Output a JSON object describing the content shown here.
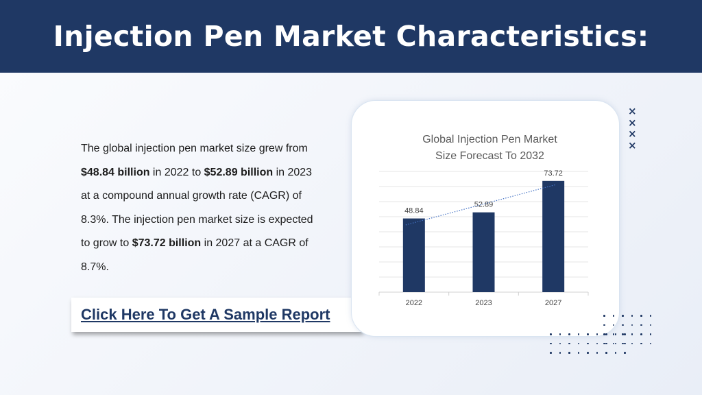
{
  "header": {
    "title": "Injection Pen Market Characteristics:"
  },
  "colors": {
    "header_bg": "#1f3864",
    "bar": "#1f3864",
    "trendline": "#4472c4",
    "decoration": "#1f3864"
  },
  "body": {
    "p1": "The global injection pen market size grew from ",
    "v2022": "$48.84 billion",
    "p2": " in 2022 to ",
    "v2023": "$52.89 billion",
    "p3": " in 2023 at a compound annual growth rate (CAGR) of 8.3%. The injection pen market size is expected to grow to ",
    "v2027": "$73.72 billion",
    "p4": " in 2027 at a CAGR of 8.7%."
  },
  "cta": {
    "label": "Click Here To Get A Sample Report"
  },
  "decorations": {
    "x_icon": "x-mark-icon",
    "dot_pattern": "dot-grid"
  },
  "chart_data": {
    "type": "bar",
    "title": "Global Injection Pen Market Size Forecast To 2032",
    "categories": [
      "2022",
      "2023",
      "2027"
    ],
    "values": [
      48.84,
      52.89,
      73.72
    ],
    "data_labels": [
      "48.84",
      "52.89",
      "73.72"
    ],
    "trendline": "linear, dotted",
    "ylim": [
      0,
      80
    ],
    "grid": true,
    "legend": "none"
  }
}
